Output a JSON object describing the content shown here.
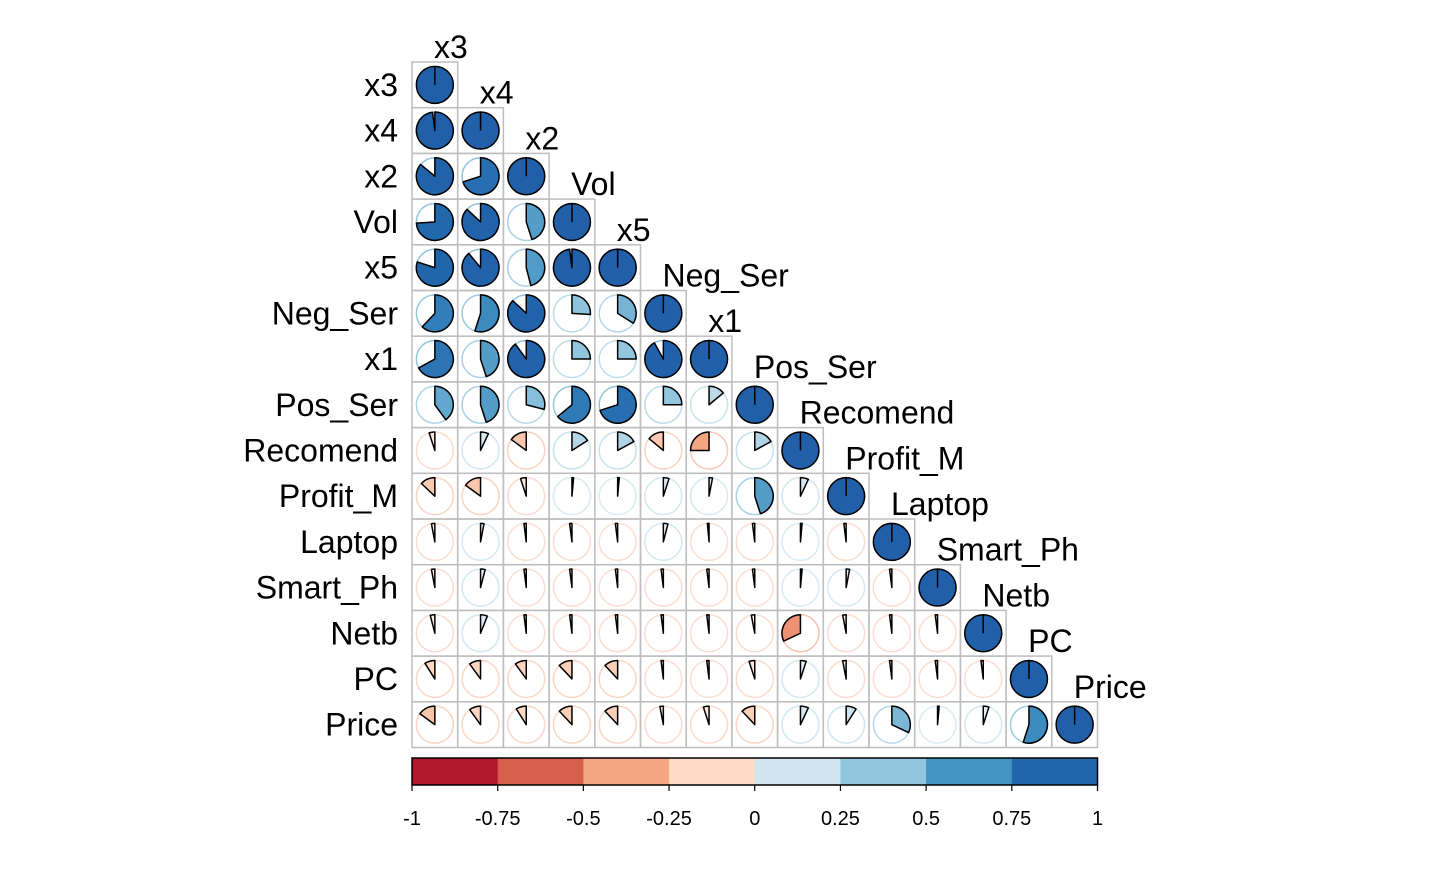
{
  "chart_data": {
    "type": "heatmap",
    "method": "pie",
    "layout": "lower-triangle",
    "variables": [
      "x3",
      "x4",
      "x2",
      "Vol",
      "x5",
      "Neg_Ser",
      "x1",
      "Pos_Ser",
      "Recomend",
      "Profit_M",
      "Laptop",
      "Smart_Ph",
      "Netb",
      "PC",
      "Price"
    ],
    "lower_triangle_correlations": [
      [
        1
      ],
      [
        0.98,
        1
      ],
      [
        0.86,
        0.7,
        1
      ],
      [
        0.74,
        0.87,
        0.45,
        1
      ],
      [
        0.8,
        0.89,
        0.46,
        0.98,
        1
      ],
      [
        0.62,
        0.55,
        0.87,
        0.26,
        0.34,
        1
      ],
      [
        0.67,
        0.45,
        0.9,
        0.25,
        0.25,
        0.92,
        1
      ],
      [
        0.4,
        0.45,
        0.29,
        0.64,
        0.7,
        0.25,
        0.14,
        1
      ],
      [
        -0.05,
        0.07,
        -0.15,
        0.16,
        0.17,
        -0.14,
        -0.25,
        0.17,
        1
      ],
      [
        -0.13,
        -0.15,
        -0.05,
        0.0,
        0.0,
        0.05,
        0.03,
        0.45,
        0.07,
        1
      ],
      [
        -0.03,
        0.03,
        -0.02,
        -0.02,
        -0.02,
        0.04,
        -0.01,
        -0.02,
        0.0,
        -0.02,
        1
      ],
      [
        -0.03,
        0.04,
        -0.02,
        -0.02,
        -0.02,
        -0.02,
        -0.02,
        -0.02,
        0.0,
        0.03,
        -0.02,
        1
      ],
      [
        -0.04,
        0.06,
        -0.02,
        -0.02,
        -0.02,
        -0.02,
        -0.02,
        -0.03,
        -0.32,
        -0.03,
        -0.02,
        -0.02,
        1
      ],
      [
        -0.09,
        -0.1,
        -0.1,
        -0.12,
        -0.12,
        -0.02,
        -0.02,
        -0.05,
        0.05,
        -0.03,
        -0.02,
        -0.02,
        -0.02,
        1
      ],
      [
        -0.15,
        -0.1,
        -0.09,
        -0.12,
        -0.12,
        -0.03,
        -0.05,
        -0.12,
        0.07,
        0.09,
        0.32,
        0.0,
        0.05,
        0.55,
        1
      ]
    ],
    "colorbar": {
      "ticks": [
        "-1",
        "-0.75",
        "-0.5",
        "-0.25",
        "0",
        "0.25",
        "0.5",
        "0.75",
        "1"
      ],
      "range": [
        -1,
        1
      ],
      "colors": [
        "#B2182B",
        "#D6604D",
        "#F4A582",
        "#FDDBC7",
        "#D1E5F0",
        "#92C5DE",
        "#4393C3",
        "#2166AC"
      ]
    },
    "grid": true,
    "grid_color": "#BEBEBE"
  }
}
